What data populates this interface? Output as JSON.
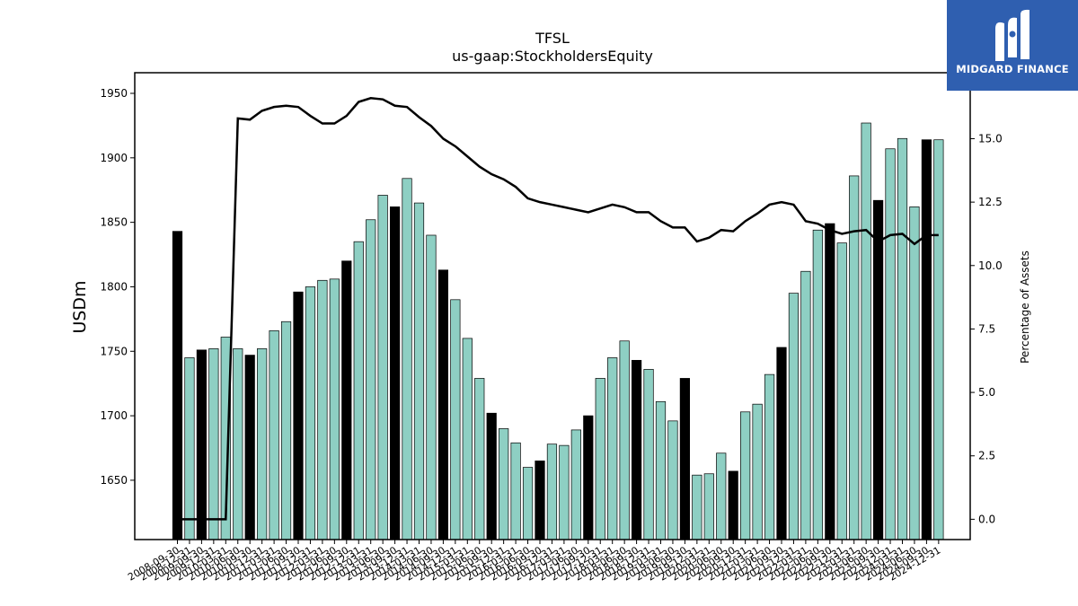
{
  "logo": {
    "name": "MIDGARD FINANCE",
    "background": "#2f5fb0"
  },
  "chart_data": {
    "type": "bar",
    "title": "TFSL",
    "subtitle": "us-gaap:StockholdersEquity",
    "ylabel": "USDm",
    "y2label": "Percentage of Assets",
    "ylim": [
      1604,
      1966
    ],
    "y2lim": [
      -0.8,
      17.6
    ],
    "yticks": [
      1650,
      1700,
      1750,
      1800,
      1850,
      1900,
      1950
    ],
    "y2ticks": [
      "0.0",
      "2.5",
      "5.0",
      "7.5",
      "10.0",
      "12.5",
      "15.0"
    ],
    "bar_color": "#8ecfc3",
    "highlight_color": "#000000",
    "highlight_note": "black bars at fiscal year end (09-30)",
    "categories": [
      "2008-09-30",
      "2008-12-31",
      "2009-09-30",
      "2009-12-31",
      "2010-03-31",
      "2010-06-30",
      "2010-09-30",
      "2010-12-31",
      "2011-03-31",
      "2011-06-30",
      "2011-09-30",
      "2011-12-31",
      "2012-03-31",
      "2012-06-30",
      "2012-09-30",
      "2012-12-31",
      "2013-03-31",
      "2013-06-30",
      "2013-09-30",
      "2013-12-31",
      "2014-03-31",
      "2014-06-30",
      "2014-09-30",
      "2014-12-31",
      "2015-03-31",
      "2015-06-30",
      "2015-09-30",
      "2015-12-31",
      "2016-03-31",
      "2016-06-30",
      "2016-09-30",
      "2016-12-31",
      "2017-03-31",
      "2017-06-30",
      "2017-09-30",
      "2017-12-31",
      "2018-03-31",
      "2018-06-30",
      "2018-09-30",
      "2018-12-31",
      "2019-03-31",
      "2019-06-30",
      "2019-09-30",
      "2019-12-31",
      "2020-03-31",
      "2020-06-30",
      "2020-09-30",
      "2020-12-31",
      "2021-03-31",
      "2021-06-30",
      "2021-09-30",
      "2021-12-31",
      "2022-03-31",
      "2022-06-30",
      "2022-09-30",
      "2022-12-31",
      "2023-03-31",
      "2023-06-30",
      "2023-09-30",
      "2023-12-31",
      "2024-03-31",
      "2024-06-30",
      "2024-09-30",
      "2024-12-31"
    ],
    "series": [
      {
        "type": "bar",
        "values": [
          1843,
          1745,
          1751,
          1752,
          1761,
          1752,
          1747,
          1752,
          1766,
          1773,
          1796,
          1800,
          1805,
          1806,
          1820,
          1835,
          1852,
          1871,
          1862,
          1884,
          1865,
          1840,
          1813,
          1790,
          1760,
          1729,
          1702,
          1690,
          1679,
          1660,
          1665,
          1678,
          1677,
          1689,
          1700,
          1729,
          1745,
          1758,
          1743,
          1736,
          1711,
          1696,
          1729,
          1654,
          1655,
          1671,
          1657,
          1703,
          1709,
          1732,
          1753,
          1795,
          1812,
          1844,
          1849,
          1834,
          1886,
          1927,
          1867,
          1907,
          1915,
          1862,
          1914,
          1914
        ]
      },
      {
        "type": "line",
        "axis": "right",
        "values": [
          0.0,
          0.0,
          0.0,
          0.0,
          0.0,
          15.8,
          15.75,
          16.1,
          16.25,
          16.3,
          16.25,
          15.9,
          15.6,
          15.6,
          15.9,
          16.45,
          16.6,
          16.55,
          16.3,
          16.25,
          15.85,
          15.5,
          15.0,
          14.7,
          14.3,
          13.9,
          13.6,
          13.4,
          13.1,
          12.65,
          12.5,
          12.4,
          12.3,
          12.2,
          12.1,
          12.25,
          12.4,
          12.3,
          12.1,
          12.1,
          11.75,
          11.5,
          11.5,
          10.95,
          11.1,
          11.4,
          11.35,
          11.75,
          12.05,
          12.4,
          12.5,
          12.4,
          11.75,
          11.65,
          11.4,
          11.25,
          11.35,
          11.4,
          10.95,
          11.2,
          11.25,
          10.85,
          11.2,
          11.2
        ]
      }
    ],
    "grid": false
  }
}
